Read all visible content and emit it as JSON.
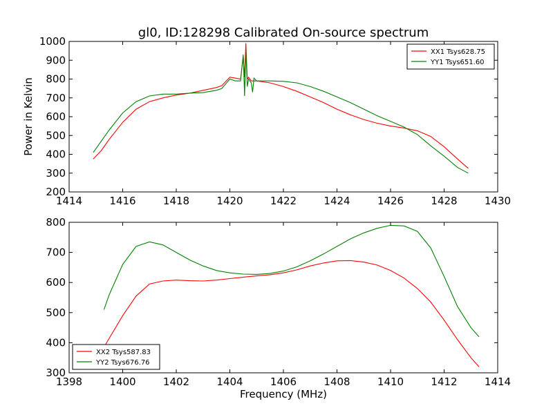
{
  "figure": {
    "title": "gl0, ID:128298 Calibrated On-source spectrum"
  },
  "chart_data": [
    {
      "type": "line",
      "title": "gl0, ID:128298 Calibrated On-source spectrum",
      "xlabel": "",
      "ylabel": "Power in Kelvin",
      "xlim": [
        1414,
        1430
      ],
      "ylim": [
        200,
        1000
      ],
      "xticks": [
        1414,
        1416,
        1418,
        1420,
        1422,
        1424,
        1426,
        1428,
        1430
      ],
      "yticks": [
        200,
        300,
        400,
        500,
        600,
        700,
        800,
        900,
        1000
      ],
      "grid": false,
      "legend_position": "top-right",
      "series": [
        {
          "name": "XX1 Tsys628.75",
          "color": "#ff0000",
          "x": [
            1414.9,
            1415.2,
            1415.5,
            1416.0,
            1416.5,
            1417.0,
            1417.5,
            1418.0,
            1418.5,
            1419.0,
            1419.5,
            1419.7,
            1420.0,
            1420.2,
            1420.4,
            1420.5,
            1420.55,
            1420.6,
            1420.65,
            1420.7,
            1420.8,
            1421.0,
            1421.5,
            1422.0,
            1422.5,
            1423.0,
            1423.5,
            1424.0,
            1424.5,
            1425.0,
            1425.5,
            1426.0,
            1426.5,
            1427.0,
            1427.5,
            1428.0,
            1428.5,
            1428.9
          ],
          "y": [
            375,
            420,
            480,
            570,
            640,
            680,
            700,
            715,
            725,
            740,
            755,
            765,
            810,
            805,
            800,
            920,
            810,
            990,
            800,
            810,
            790,
            790,
            780,
            760,
            735,
            705,
            675,
            640,
            610,
            585,
            565,
            550,
            540,
            525,
            495,
            440,
            375,
            325
          ]
        },
        {
          "name": "YY1 Tsys651.60",
          "color": "#008000",
          "x": [
            1414.9,
            1415.2,
            1415.5,
            1416.0,
            1416.5,
            1417.0,
            1417.5,
            1418.0,
            1418.5,
            1419.0,
            1419.5,
            1419.7,
            1420.0,
            1420.2,
            1420.4,
            1420.5,
            1420.55,
            1420.6,
            1420.65,
            1420.7,
            1420.8,
            1420.85,
            1420.9,
            1421.0,
            1421.5,
            1422.0,
            1422.5,
            1423.0,
            1423.5,
            1424.0,
            1424.5,
            1425.0,
            1425.5,
            1426.0,
            1426.5,
            1427.0,
            1427.5,
            1428.0,
            1428.5,
            1428.9
          ],
          "y": [
            410,
            470,
            530,
            620,
            680,
            710,
            720,
            720,
            725,
            728,
            740,
            750,
            800,
            790,
            790,
            930,
            710,
            960,
            760,
            800,
            780,
            730,
            805,
            790,
            790,
            788,
            780,
            760,
            735,
            705,
            675,
            640,
            605,
            575,
            545,
            505,
            445,
            390,
            330,
            300
          ]
        }
      ]
    },
    {
      "type": "line",
      "title": "",
      "xlabel": "Frequency (MHz)",
      "ylabel": "",
      "xlim": [
        1398,
        1414
      ],
      "ylim": [
        300,
        800
      ],
      "xticks": [
        1398,
        1400,
        1402,
        1404,
        1406,
        1408,
        1410,
        1412,
        1414
      ],
      "yticks": [
        300,
        400,
        500,
        600,
        700,
        800
      ],
      "grid": false,
      "legend_position": "bottom-left",
      "series": [
        {
          "name": "XX2 Tsys587.83",
          "color": "#ff0000",
          "x": [
            1399.3,
            1399.5,
            1400.0,
            1400.5,
            1401.0,
            1401.5,
            1402.0,
            1402.5,
            1403.0,
            1403.5,
            1404.0,
            1404.5,
            1405.0,
            1405.5,
            1406.0,
            1406.5,
            1407.0,
            1407.5,
            1408.0,
            1408.5,
            1409.0,
            1409.5,
            1410.0,
            1410.5,
            1411.0,
            1411.5,
            1412.0,
            1412.5,
            1413.0,
            1413.3
          ],
          "y": [
            385,
            415,
            490,
            555,
            595,
            605,
            608,
            606,
            605,
            608,
            613,
            618,
            622,
            626,
            632,
            642,
            655,
            665,
            672,
            673,
            668,
            658,
            640,
            615,
            580,
            535,
            475,
            410,
            350,
            320
          ]
        },
        {
          "name": "YY2 Tsys676.76",
          "color": "#008000",
          "x": [
            1399.3,
            1399.5,
            1400.0,
            1400.5,
            1401.0,
            1401.5,
            1402.0,
            1402.5,
            1403.0,
            1403.5,
            1404.0,
            1404.5,
            1405.0,
            1405.5,
            1406.0,
            1406.5,
            1407.0,
            1407.5,
            1408.0,
            1408.5,
            1409.0,
            1409.5,
            1410.0,
            1410.5,
            1411.0,
            1411.5,
            1412.0,
            1412.5,
            1413.0,
            1413.3
          ],
          "y": [
            510,
            560,
            660,
            720,
            735,
            725,
            700,
            675,
            655,
            640,
            632,
            628,
            627,
            630,
            638,
            652,
            672,
            695,
            720,
            745,
            765,
            780,
            790,
            788,
            770,
            715,
            620,
            520,
            450,
            420
          ]
        }
      ]
    }
  ]
}
